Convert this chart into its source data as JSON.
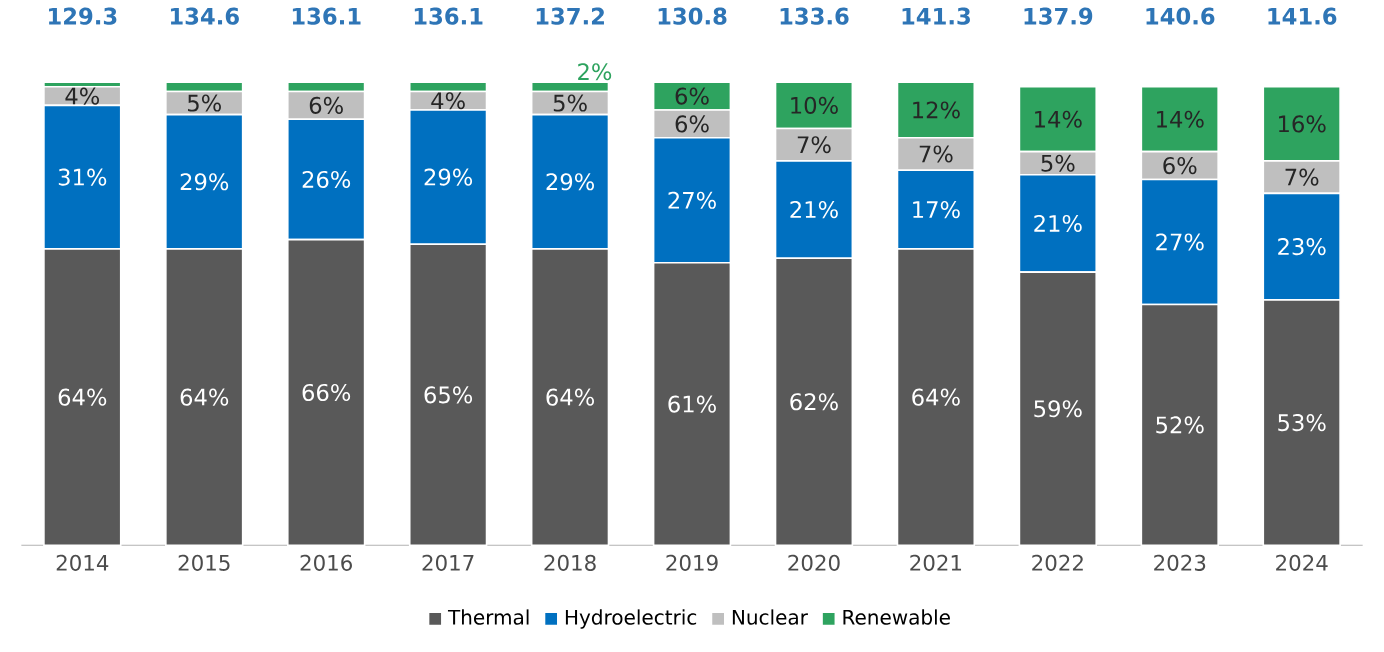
{
  "chart_data": {
    "type": "bar",
    "stacked": true,
    "legend": "bottom",
    "categories": [
      "2014",
      "2015",
      "2016",
      "2017",
      "2018",
      "2019",
      "2020",
      "2021",
      "2022",
      "2023",
      "2024"
    ],
    "series": [
      {
        "name": "Thermal",
        "color": "#595959",
        "values": [
          64,
          64,
          66,
          65,
          64,
          61,
          62,
          64,
          59,
          52,
          53
        ],
        "value_labels": [
          "64%",
          "64%",
          "66%",
          "65%",
          "64%",
          "61%",
          "62%",
          "64%",
          "59%",
          "52%",
          "53%"
        ]
      },
      {
        "name": "Hydroelectric",
        "color": "#0070c0",
        "values": [
          31,
          29,
          26,
          29,
          29,
          27,
          21,
          17,
          21,
          27,
          23
        ],
        "value_labels": [
          "31%",
          "29%",
          "26%",
          "29%",
          "29%",
          "27%",
          "21%",
          "17%",
          "21%",
          "27%",
          "23%"
        ]
      },
      {
        "name": "Nuclear",
        "color": "#bfbfbf",
        "values": [
          4,
          5,
          6,
          4,
          5,
          6,
          7,
          7,
          5,
          6,
          7
        ],
        "value_labels": [
          "4%",
          "5%",
          "6%",
          "4%",
          "5%",
          "6%",
          "7%",
          "7%",
          "5%",
          "6%",
          "7%"
        ]
      },
      {
        "name": "Renewable",
        "color": "#2ea35f",
        "values": [
          1,
          2,
          2,
          2,
          2,
          6,
          10,
          12,
          14,
          14,
          16
        ],
        "value_labels": [
          null,
          null,
          null,
          null,
          "2%",
          "6%",
          "10%",
          "12%",
          "14%",
          "14%",
          "16%"
        ]
      }
    ],
    "annotations": [
      "129.3",
      "134.6",
      "136.1",
      "136.1",
      "137.2",
      "130.8",
      "133.6",
      "141.3",
      "137.9",
      "140.6",
      "141.6"
    ]
  }
}
